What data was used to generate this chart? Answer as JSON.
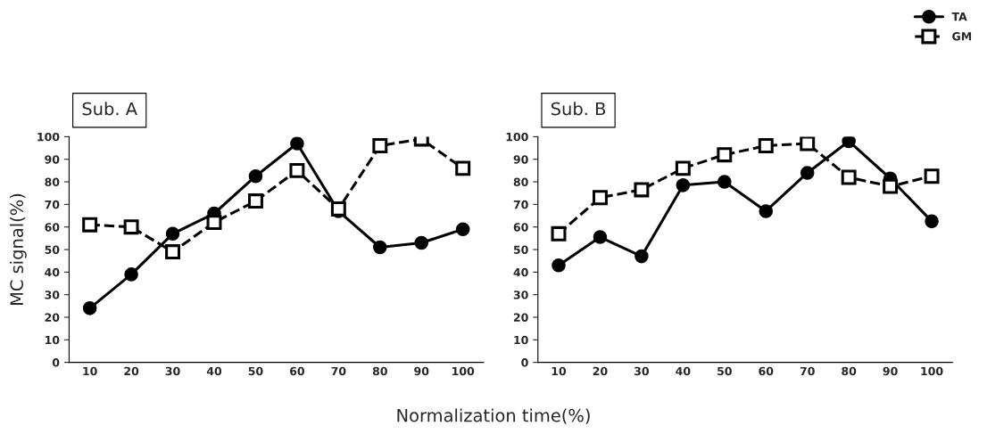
{
  "chart_data": [
    {
      "type": "line",
      "title": "Sub. A",
      "ylabel": "MC signal(%)",
      "xlabel": "Normalization time(%)",
      "categories": [
        "10",
        "20",
        "30",
        "40",
        "50",
        "60",
        "70",
        "80",
        "90",
        "100"
      ],
      "ylim": [
        0,
        100
      ],
      "yticks": [
        0,
        10,
        20,
        30,
        40,
        50,
        60,
        70,
        80,
        90,
        100
      ],
      "grid": false,
      "legend": "top right",
      "series": [
        {
          "name": "TA",
          "color": "#000000",
          "marker": "circle",
          "line_style": "solid",
          "values": [
            24,
            39,
            57,
            66,
            82.5,
            97,
            67,
            51,
            53,
            59
          ]
        },
        {
          "name": "GM",
          "color": "#000000",
          "marker": "square",
          "line_style": "dashed",
          "values": [
            61,
            60,
            49,
            62,
            71.5,
            85,
            68,
            96,
            99,
            86
          ]
        }
      ]
    },
    {
      "type": "line",
      "title": "Sub. B",
      "categories": [
        "10",
        "20",
        "30",
        "40",
        "50",
        "60",
        "70",
        "80",
        "90",
        "100"
      ],
      "ylim": [
        0,
        100
      ],
      "yticks": [
        0,
        10,
        20,
        30,
        40,
        50,
        60,
        70,
        80,
        90,
        100
      ],
      "grid": false,
      "series": [
        {
          "color": "#000000",
          "marker": "circle",
          "line_style": "solid",
          "values": [
            43,
            55.5,
            47,
            78.5,
            80,
            67,
            84,
            98,
            81.5,
            62.5
          ]
        },
        {
          "color": "#000000",
          "marker": "square",
          "line_style": "dashed",
          "values": [
            57,
            73,
            76.5,
            86,
            92,
            96,
            97,
            82,
            78,
            82.5
          ]
        }
      ]
    }
  ]
}
